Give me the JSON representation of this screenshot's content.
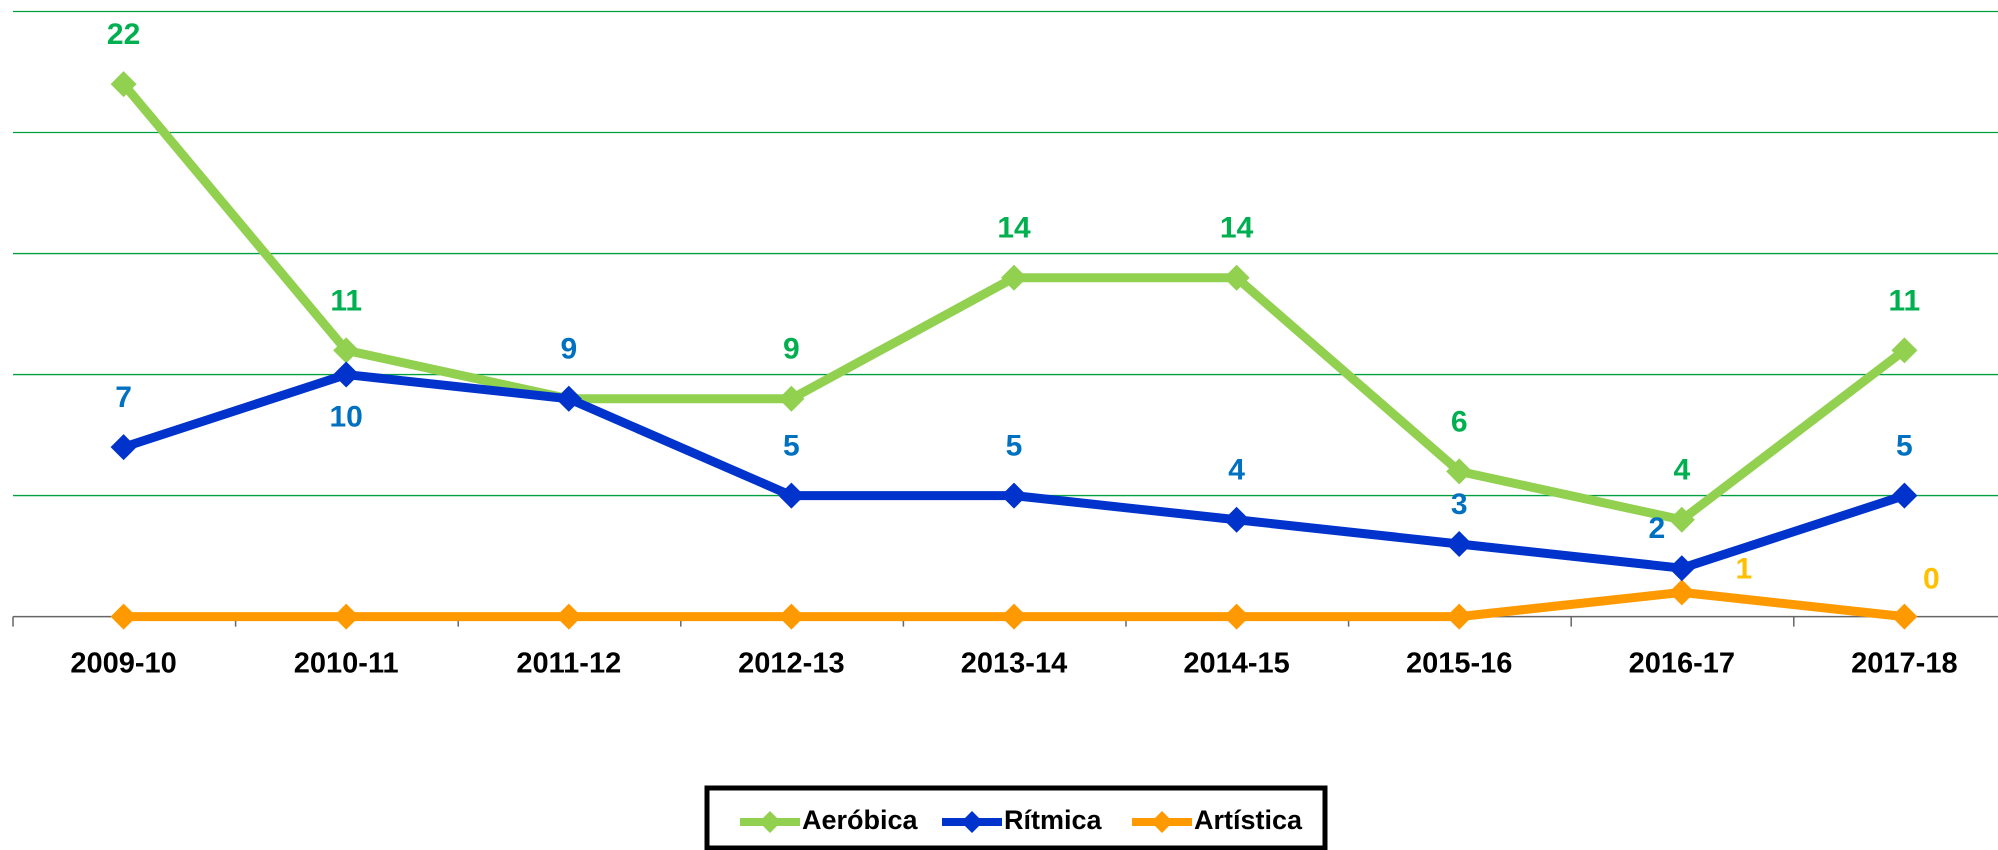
{
  "chart_data": {
    "type": "line",
    "categories": [
      "2009-10",
      "2010-11",
      "2011-12",
      "2012-13",
      "2013-14",
      "2014-15",
      "2015-16",
      "2016-17",
      "2017-18"
    ],
    "series": [
      {
        "name": "Aeróbica",
        "color": "#92d050",
        "label_color": "#00b050",
        "values": [
          22,
          11,
          9,
          9,
          14,
          14,
          6,
          4,
          11
        ],
        "value_labels": [
          "22",
          "11",
          null,
          "9",
          "14",
          "14",
          "6",
          "4",
          "11"
        ]
      },
      {
        "name": "Rítmica",
        "color": "#0033cc",
        "label_color": "#0070c0",
        "values": [
          7,
          10,
          9,
          5,
          5,
          4,
          3,
          2,
          5
        ]
      },
      {
        "name": "Artística",
        "color": "#ff9900",
        "label_color": "#ffc000",
        "values": [
          0,
          0,
          0,
          0,
          0,
          0,
          0,
          1,
          0
        ],
        "value_labels": [
          null,
          null,
          null,
          null,
          null,
          null,
          null,
          "1",
          "0"
        ]
      }
    ],
    "ylim": [
      0,
      25
    ],
    "yticks": [
      0,
      5,
      10,
      15,
      20,
      25
    ],
    "grid": true,
    "legend": "bottom"
  }
}
